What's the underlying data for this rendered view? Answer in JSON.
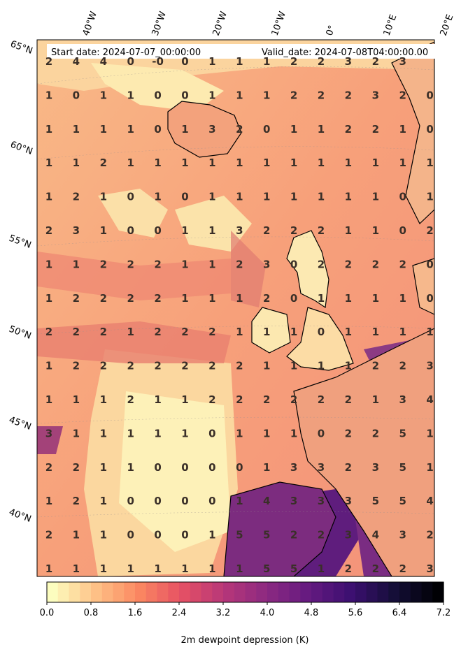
{
  "header": {
    "start_date": "Start date: 2024-07-07_00:00:00",
    "valid_date": "Valid_date: 2024-07-08T04:00:00.00"
  },
  "lon_labels": [
    "40°W",
    "30°W",
    "20°W",
    "10°W",
    "0°",
    "10°E",
    "20°E"
  ],
  "lat_labels": [
    "65°N",
    "60°N",
    "55°N",
    "50°N",
    "45°N",
    "40°N"
  ],
  "grid_values": [
    [
      "2",
      "4",
      "4",
      "0",
      "-0",
      "0",
      "1",
      "1",
      "1",
      "2",
      "2",
      "3",
      "2",
      "3"
    ],
    [
      "1",
      "0",
      "1",
      "1",
      "0",
      "0",
      "1",
      "1",
      "1",
      "2",
      "2",
      "2",
      "3",
      "2",
      "0"
    ],
    [
      "1",
      "1",
      "1",
      "1",
      "0",
      "1",
      "3",
      "2",
      "0",
      "1",
      "1",
      "2",
      "2",
      "1",
      "0"
    ],
    [
      "1",
      "1",
      "2",
      "1",
      "1",
      "1",
      "1",
      "1",
      "1",
      "1",
      "1",
      "1",
      "1",
      "1",
      "1"
    ],
    [
      "1",
      "2",
      "1",
      "0",
      "1",
      "0",
      "1",
      "1",
      "1",
      "1",
      "1",
      "1",
      "1",
      "0",
      "1"
    ],
    [
      "2",
      "3",
      "1",
      "0",
      "0",
      "1",
      "1",
      "3",
      "2",
      "2",
      "2",
      "1",
      "1",
      "0",
      "2"
    ],
    [
      "1",
      "1",
      "2",
      "2",
      "2",
      "1",
      "1",
      "2",
      "3",
      "0",
      "2",
      "2",
      "2",
      "2",
      "0"
    ],
    [
      "1",
      "2",
      "2",
      "2",
      "2",
      "1",
      "1",
      "1",
      "2",
      "0",
      "1",
      "1",
      "1",
      "1",
      "0"
    ],
    [
      "2",
      "2",
      "2",
      "1",
      "2",
      "2",
      "2",
      "1",
      "1",
      "1",
      "0",
      "1",
      "1",
      "1",
      "1"
    ],
    [
      "1",
      "2",
      "2",
      "2",
      "2",
      "2",
      "2",
      "2",
      "1",
      "1",
      "1",
      "1",
      "2",
      "2",
      "3"
    ],
    [
      "1",
      "1",
      "1",
      "2",
      "1",
      "1",
      "2",
      "2",
      "2",
      "2",
      "2",
      "2",
      "1",
      "3",
      "4"
    ],
    [
      "3",
      "1",
      "1",
      "1",
      "1",
      "1",
      "0",
      "1",
      "1",
      "1",
      "0",
      "2",
      "2",
      "5",
      "1"
    ],
    [
      "2",
      "2",
      "1",
      "1",
      "0",
      "0",
      "0",
      "0",
      "1",
      "3",
      "3",
      "2",
      "3",
      "5",
      "1"
    ],
    [
      "1",
      "2",
      "1",
      "0",
      "0",
      "0",
      "0",
      "1",
      "4",
      "3",
      "3",
      "3",
      "5",
      "5",
      "4"
    ],
    [
      "2",
      "1",
      "1",
      "0",
      "0",
      "0",
      "1",
      "5",
      "5",
      "2",
      "2",
      "3",
      "4",
      "3",
      "2"
    ],
    [
      "1",
      "1",
      "1",
      "1",
      "1",
      "1",
      "1",
      "1",
      "5",
      "5",
      "1",
      "2",
      "2",
      "2",
      "3"
    ]
  ],
  "colorbar": {
    "label": "2m dewpoint depression (K)",
    "ticks": [
      "0.0",
      "0.8",
      "1.6",
      "2.4",
      "3.2",
      "4.0",
      "4.8",
      "5.6",
      "6.4",
      "7.2"
    ],
    "vmin": 0,
    "vmax": 7.2,
    "n_levels": 36,
    "cmap": [
      "#fcfdbf",
      "#fec287",
      "#fb8861",
      "#e65164",
      "#b73779",
      "#8c2981",
      "#641a80",
      "#3b0f70",
      "#140e36",
      "#000004"
    ]
  },
  "colors": {
    "land_low": "#fcecb0",
    "coast": "#000000"
  }
}
